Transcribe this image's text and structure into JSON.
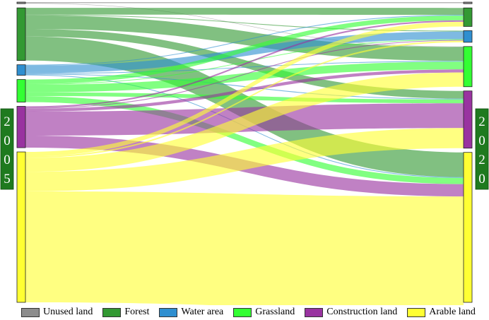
{
  "chart_data": {
    "type": "sankey",
    "years": [
      "2005",
      "2020"
    ],
    "categories": [
      {
        "key": "unused",
        "name": "Unused land",
        "color": "#8c8c8c",
        "area_2005": 1.0,
        "area_2020": 1.0
      },
      {
        "key": "forest",
        "name": "Forest",
        "color": "#339933",
        "area_2005": 35.0,
        "area_2020": 12.0
      },
      {
        "key": "water",
        "name": "Water area",
        "color": "#2f8fd0",
        "area_2005": 7.0,
        "area_2020": 7.5
      },
      {
        "key": "grass",
        "name": "Grassland",
        "color": "#33ff33",
        "area_2005": 15.0,
        "area_2020": 26.0
      },
      {
        "key": "construction",
        "name": "Construction land",
        "color": "#9933a0",
        "area_2005": 27.5,
        "area_2020": 37.0
      },
      {
        "key": "arable",
        "name": "Arable land",
        "color": "#ffff33",
        "area_2005": 100.0,
        "area_2020": 97.0
      }
    ],
    "flows": [
      {
        "from": "unused",
        "to": "unused",
        "value": 0.7
      },
      {
        "from": "unused",
        "to": "grass",
        "value": 0.3
      },
      {
        "from": "forest",
        "to": "forest",
        "value": 4.5
      },
      {
        "from": "forest",
        "to": "water",
        "value": 0.5
      },
      {
        "from": "forest",
        "to": "grass",
        "value": 9.0
      },
      {
        "from": "forest",
        "to": "construction",
        "value": 5.0
      },
      {
        "from": "forest",
        "to": "arable",
        "value": 16.0
      },
      {
        "from": "water",
        "to": "forest",
        "value": 0.5
      },
      {
        "from": "water",
        "to": "water",
        "value": 5.0
      },
      {
        "from": "water",
        "to": "grass",
        "value": 0.5
      },
      {
        "from": "water",
        "to": "construction",
        "value": 0.5
      },
      {
        "from": "water",
        "to": "arable",
        "value": 0.5
      },
      {
        "from": "grass",
        "to": "forest",
        "value": 3.0
      },
      {
        "from": "grass",
        "to": "water",
        "value": 0.5
      },
      {
        "from": "grass",
        "to": "grass",
        "value": 5.0
      },
      {
        "from": "grass",
        "to": "construction",
        "value": 2.5
      },
      {
        "from": "grass",
        "to": "arable",
        "value": 4.0
      },
      {
        "from": "construction",
        "to": "forest",
        "value": 1.0
      },
      {
        "from": "construction",
        "to": "water",
        "value": 0.5
      },
      {
        "from": "construction",
        "to": "grass",
        "value": 2.0
      },
      {
        "from": "construction",
        "to": "construction",
        "value": 16.0
      },
      {
        "from": "construction",
        "to": "arable",
        "value": 8.0
      },
      {
        "from": "arable",
        "to": "forest",
        "value": 3.0
      },
      {
        "from": "arable",
        "to": "water",
        "value": 1.0
      },
      {
        "from": "arable",
        "to": "grass",
        "value": 9.2
      },
      {
        "from": "arable",
        "to": "construction",
        "value": 13.0
      },
      {
        "from": "arable",
        "to": "arable",
        "value": 73.8
      }
    ]
  }
}
